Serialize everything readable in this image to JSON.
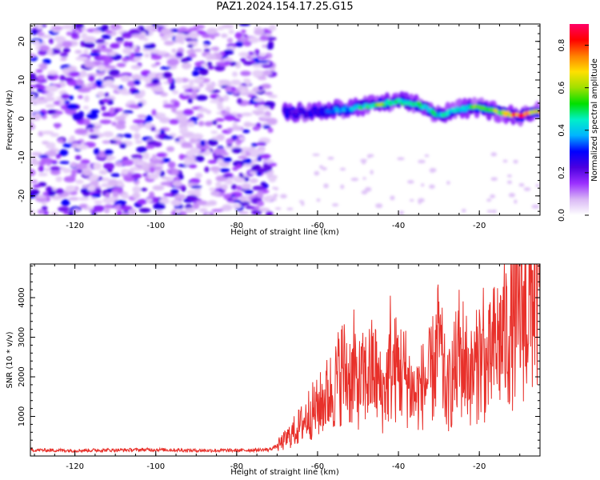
{
  "figure_title": "PAZ1.2024.154.17.25.G15",
  "colors": {
    "snr_line": "#e8302a",
    "axis": "#000000",
    "colormap": [
      "#ffffff",
      "#d9b8f5",
      "#9b30ff",
      "#4b00e0",
      "#0000ff",
      "#00b4ff",
      "#00f0c8",
      "#00e000",
      "#a0e000",
      "#ffe000",
      "#ff8000",
      "#ff0000",
      "#ff0066"
    ]
  },
  "chart_data": [
    {
      "type": "heatmap",
      "title": "",
      "xlabel": "Height of straight line (km)",
      "ylabel": "Frequency (Hz)",
      "xlim": [
        -131,
        -5
      ],
      "ylim": [
        -25,
        24.5
      ],
      "x_ticks": [
        -120,
        -100,
        -80,
        -60,
        -40,
        -20
      ],
      "y_ticks": [
        -20,
        -10,
        0,
        10,
        20
      ],
      "noise_region": {
        "x": [
          -131,
          -71
        ],
        "y": [
          -25,
          24.5
        ],
        "typical_amplitude": [
          0.05,
          0.3
        ]
      },
      "signal_ridge": {
        "x": [
          -68,
          -60,
          -50,
          -45,
          -40,
          -35,
          -30,
          -25,
          -20,
          -15,
          -10,
          -5
        ],
        "frequency": [
          1.5,
          1.8,
          2.9,
          3.8,
          4.4,
          3.6,
          1.0,
          2.5,
          2.9,
          1.6,
          0.7,
          2.0
        ],
        "amplitude": [
          0.2,
          0.3,
          0.45,
          0.6,
          0.5,
          0.5,
          0.45,
          0.45,
          0.6,
          0.6,
          0.9,
          0.7
        ]
      },
      "colorbar": {
        "label": "Normalized spectral amplitude",
        "range": [
          0.0,
          0.9
        ],
        "ticks": [
          "0.0",
          "0.2",
          "0.4",
          "0.6",
          "0.8"
        ]
      }
    },
    {
      "type": "line",
      "title": "",
      "xlabel": "Height of straight line (km)",
      "ylabel": "SNR (10 * v/v)",
      "xlim": [
        -131,
        -5
      ],
      "ylim": [
        0,
        4850
      ],
      "x_ticks": [
        -120,
        -100,
        -80,
        -60,
        -40,
        -20
      ],
      "y_ticks": [
        1000,
        2000,
        3000,
        4000
      ],
      "series": [
        {
          "x": [
            -131,
            -120,
            -110,
            -100,
            -90,
            -80,
            -72,
            -70,
            -68,
            -66,
            -64,
            -62,
            -60,
            -58,
            -56,
            -54,
            -52,
            -50,
            -48,
            -46,
            -44,
            -42,
            -40,
            -38,
            -36,
            -34,
            -32,
            -30,
            -28,
            -26,
            -24,
            -22,
            -20,
            -18,
            -16,
            -14,
            -12,
            -10,
            -8,
            -6,
            -5
          ],
          "values": [
            150,
            140,
            150,
            160,
            140,
            140,
            160,
            250,
            400,
            600,
            800,
            1100,
            1200,
            1500,
            1700,
            2200,
            2000,
            1800,
            2000,
            2200,
            1500,
            2200,
            2200,
            2000,
            1500,
            1800,
            2000,
            2800,
            1500,
            2200,
            2500,
            2000,
            2400,
            2200,
            2800,
            3000,
            3200,
            3600,
            3700,
            4300,
            4500
          ],
          "peaks": [
            {
              "x": -51,
              "value": 3700
            },
            {
              "x": -42,
              "value": 4050
            },
            {
              "x": -30,
              "value": 3900
            },
            {
              "x": -25,
              "value": 4200
            },
            {
              "x": -20,
              "value": 3700
            },
            {
              "x": -19,
              "value": 4250
            },
            {
              "x": -14,
              "value": 3150
            },
            {
              "x": -7,
              "value": 4700
            }
          ]
        }
      ]
    }
  ]
}
